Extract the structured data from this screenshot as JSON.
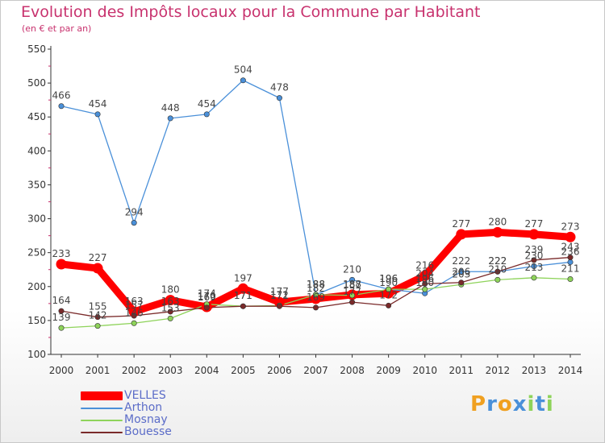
{
  "chart_data": {
    "type": "line",
    "title": "Evolution des Impôts locaux pour la Commune par Habitant",
    "subtitle": "(en € et par an)",
    "xlabel": "",
    "ylabel": "",
    "x": [
      "2000",
      "2001",
      "2002",
      "2003",
      "2004",
      "2005",
      "2006",
      "2007",
      "2008",
      "2009",
      "2010",
      "2011",
      "2012",
      "2013",
      "2014"
    ],
    "ylim": [
      100,
      550
    ],
    "yticks": [
      "100",
      "150",
      "200",
      "250",
      "300",
      "350",
      "400",
      "450",
      "500",
      "550"
    ],
    "grid": false,
    "legend_position": "bottom-left",
    "series": [
      {
        "name": "VELLES",
        "color": "#ff0000",
        "values": [
          233,
          227,
          163,
          180,
          170,
          197,
          177,
          182,
          188,
          190,
          216,
          277,
          280,
          277,
          273
        ]
      },
      {
        "name": "Arthon",
        "color": "#4a90d9",
        "values": [
          466,
          454,
          294,
          448,
          454,
          504,
          478,
          188,
          210,
          196,
          190,
          222,
          222,
          230,
          236
        ]
      },
      {
        "name": "Mosnay",
        "color": "#8ed35a",
        "values": [
          139,
          142,
          146,
          153,
          174,
          171,
          172,
          188,
          187,
          196,
          196,
          203,
          210,
          213,
          211
        ]
      },
      {
        "name": "Bouesse",
        "color": "#7a2a2a",
        "values": [
          164,
          155,
          157,
          163,
          169,
          171,
          171,
          169,
          177,
          172,
          204,
          206,
          222,
          239,
          243
        ]
      }
    ],
    "value_labels": [
      [
        "233",
        "227",
        "163",
        "180",
        "170",
        "197",
        "177",
        "182",
        "188",
        "190",
        "216",
        "277",
        "280",
        "277",
        "273"
      ],
      [
        "466",
        "454",
        "294",
        "448",
        "454",
        "504",
        "478",
        "188",
        "210",
        "196",
        "190",
        "222",
        "222",
        "230",
        "236"
      ],
      [
        "139",
        "142",
        "146",
        "153",
        "174",
        "171",
        "172",
        "188",
        "187",
        "196",
        "196",
        "203",
        "210",
        "213",
        "211"
      ],
      [
        "164",
        "155",
        "157",
        "163",
        "169",
        "171",
        "171",
        "169",
        "177",
        "172",
        "204",
        "206",
        "222",
        "239",
        "243"
      ]
    ]
  },
  "logo": {
    "text": "Proxiti",
    "letters": [
      "P",
      "r",
      "o",
      "x",
      "i",
      "t",
      "i"
    ],
    "colors": [
      "#f0a020",
      "#4a90d9",
      "#f0a020",
      "#4a90d9",
      "#8ed35a",
      "#4a90d9",
      "#8ed35a"
    ]
  }
}
